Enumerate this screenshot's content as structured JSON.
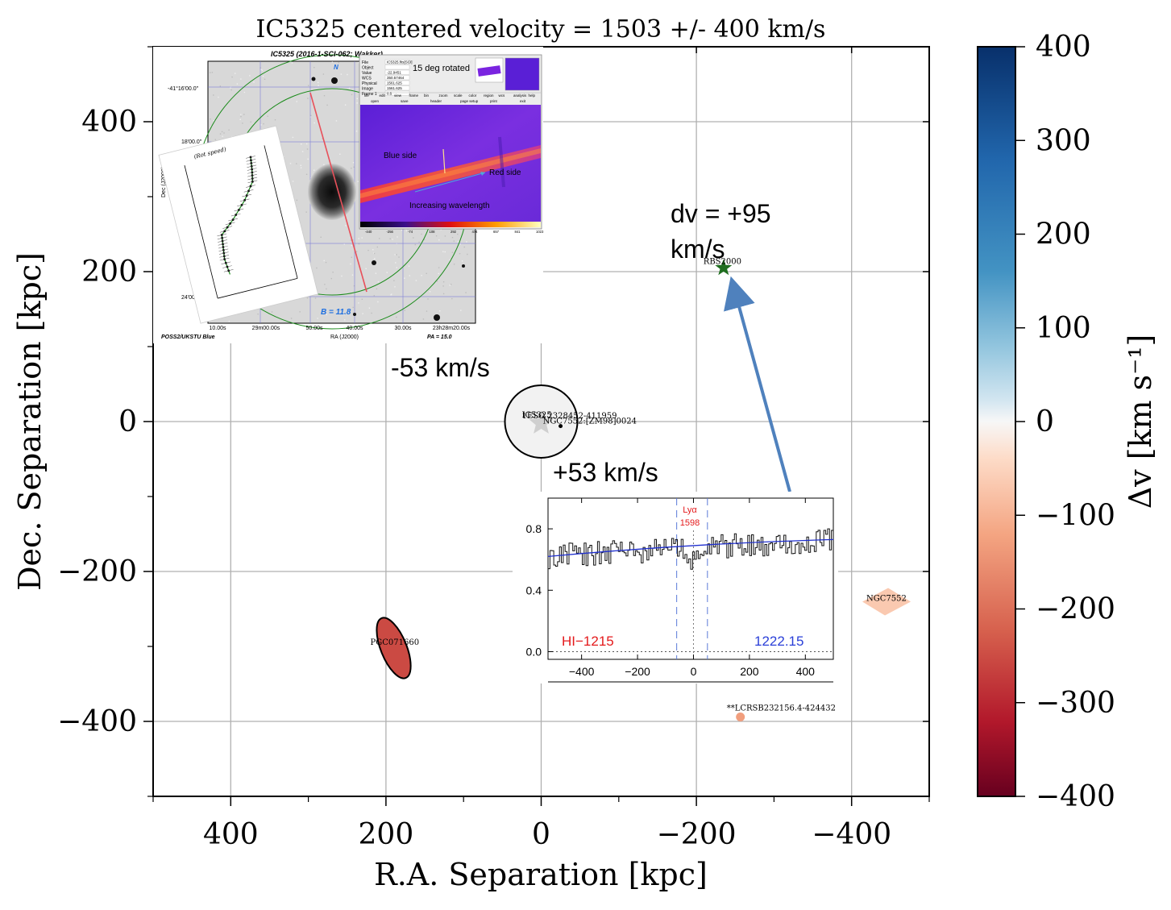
{
  "chart_data": {
    "type": "scatter",
    "title": "IC5325 centered velocity = 1503 +/- 400 km/s",
    "xlabel": "R.A. Separation [kpc]",
    "ylabel": "Dec. Separation [kpc]",
    "xlim": [
      500,
      -500
    ],
    "ylim": [
      -500,
      500
    ],
    "xticks": [
      400,
      200,
      0,
      -200,
      -400
    ],
    "xtick_labels": [
      "400",
      "200",
      "0",
      "−200",
      "−400"
    ],
    "yticks": [
      400,
      200,
      0,
      -200,
      -400
    ],
    "ytick_labels": [
      "400",
      "200",
      "0",
      "−200",
      "−400"
    ],
    "grid": true,
    "colorbar": {
      "label": "Δv [km s⁻¹]",
      "range": [
        -400,
        400
      ],
      "ticks": [
        400,
        300,
        200,
        100,
        0,
        -100,
        -200,
        -300,
        -400
      ],
      "tick_labels": [
        "400",
        "300",
        "200",
        "100",
        "0",
        "−100",
        "−200",
        "−300",
        "−400"
      ]
    },
    "galaxies": [
      {
        "name": "IC5325",
        "x": 0,
        "y": 0,
        "dv": 0,
        "marker": "star-circle"
      },
      {
        "name": "NGC7552",
        "x": -445,
        "y": -235,
        "dv": -60,
        "marker": "diamond"
      },
      {
        "name": "PGC071660",
        "x": 190,
        "y": -300,
        "dv": -230,
        "marker": "ellipse"
      },
      {
        "name": "**LCRSB232156.4-424432",
        "x": -265,
        "y": -393,
        "dv": -110,
        "marker": "dot"
      },
      {
        "name": "NGC7552:[ZM98]0024",
        "x": -25,
        "y": -5,
        "dv": 0,
        "marker": "dot"
      }
    ],
    "sightlines": [
      {
        "name": "RBS2000",
        "x": -235,
        "y": 205,
        "marker": "star"
      }
    ],
    "extra_labels": [
      "1ESO 2328452-411959"
    ]
  },
  "annotations": {
    "dv_label": "dv = +95\nkm/s",
    "minus53": "-53 km/s",
    "plus53": "+53 km/s"
  },
  "inset_image": {
    "title": "IC5325 (2016-1-SCI-062; Wakker)",
    "dec_labels": [
      "-41°16'00.0\"",
      "18'00.0\"",
      "22",
      "24'00.0"
    ],
    "dec_axis": "Dec (J2000)",
    "ra_ticks": [
      "10.00s",
      "29m00.00s",
      "50.00s",
      "40.00s",
      "30.00s",
      "23h28m20.00s"
    ],
    "ra_axis": "RA (J2000)",
    "survey": "POSS2/UKSTU Blue",
    "pa": "PA = 15.0",
    "b": "B = 11.8",
    "north": "N",
    "sketch_label": "(Rot speed)",
    "rotated_label": "15 deg rotated",
    "blue_side": "Blue side",
    "red_side": "Red side",
    "increasing": "Increasing wavelength",
    "cbar_ticks": [
      "-440",
      "-256",
      "-74",
      "108",
      "292",
      "474",
      "657",
      "841",
      "1023"
    ],
    "menu_items": [
      "file",
      "edit",
      "view",
      "frame",
      "bin",
      "zoom",
      "scale",
      "color",
      "region",
      "wcs",
      "analysis",
      "help"
    ],
    "buttons": [
      "open",
      "save",
      "header",
      "page setup",
      "print",
      "exit"
    ],
    "info_keys": [
      "File",
      "Object",
      "Value",
      "WCS",
      "Physical",
      "Image",
      "Frame 1"
    ],
    "info_vals": [
      "IC5325.fits[SCI]",
      "",
      "-22.9451",
      "350.57464",
      "1561.625",
      "1561.625",
      "0.5"
    ]
  },
  "inset_spectrum": {
    "line_label": "Lyα",
    "line_value": "1598",
    "left_label": "HI−1215",
    "right_label": "1222.15",
    "xticks": [
      -400,
      -200,
      0,
      200,
      400
    ],
    "xtick_labels": [
      "−400",
      "−200",
      "0",
      "200",
      "400"
    ],
    "yticks": [
      0.0,
      0.4,
      0.8
    ],
    "ytick_labels": [
      "0.0",
      "0.4",
      "0.8"
    ],
    "xlim": [
      -520,
      500
    ],
    "ylim": [
      -0.05,
      1.0
    ],
    "fit_start": 0.62,
    "fit_end": 0.73,
    "vlines_dashed": [
      -60,
      50
    ],
    "vline_dotted": 0
  },
  "colors": {
    "axis": "#000000",
    "grid": "#b0b0b0",
    "arrow": "#4f81bd",
    "sightline": "#1f6e1f",
    "spectrum_fit": "#1f2fcf",
    "line_red": "#e41a1c",
    "line_blue": "#2a3fd8"
  }
}
